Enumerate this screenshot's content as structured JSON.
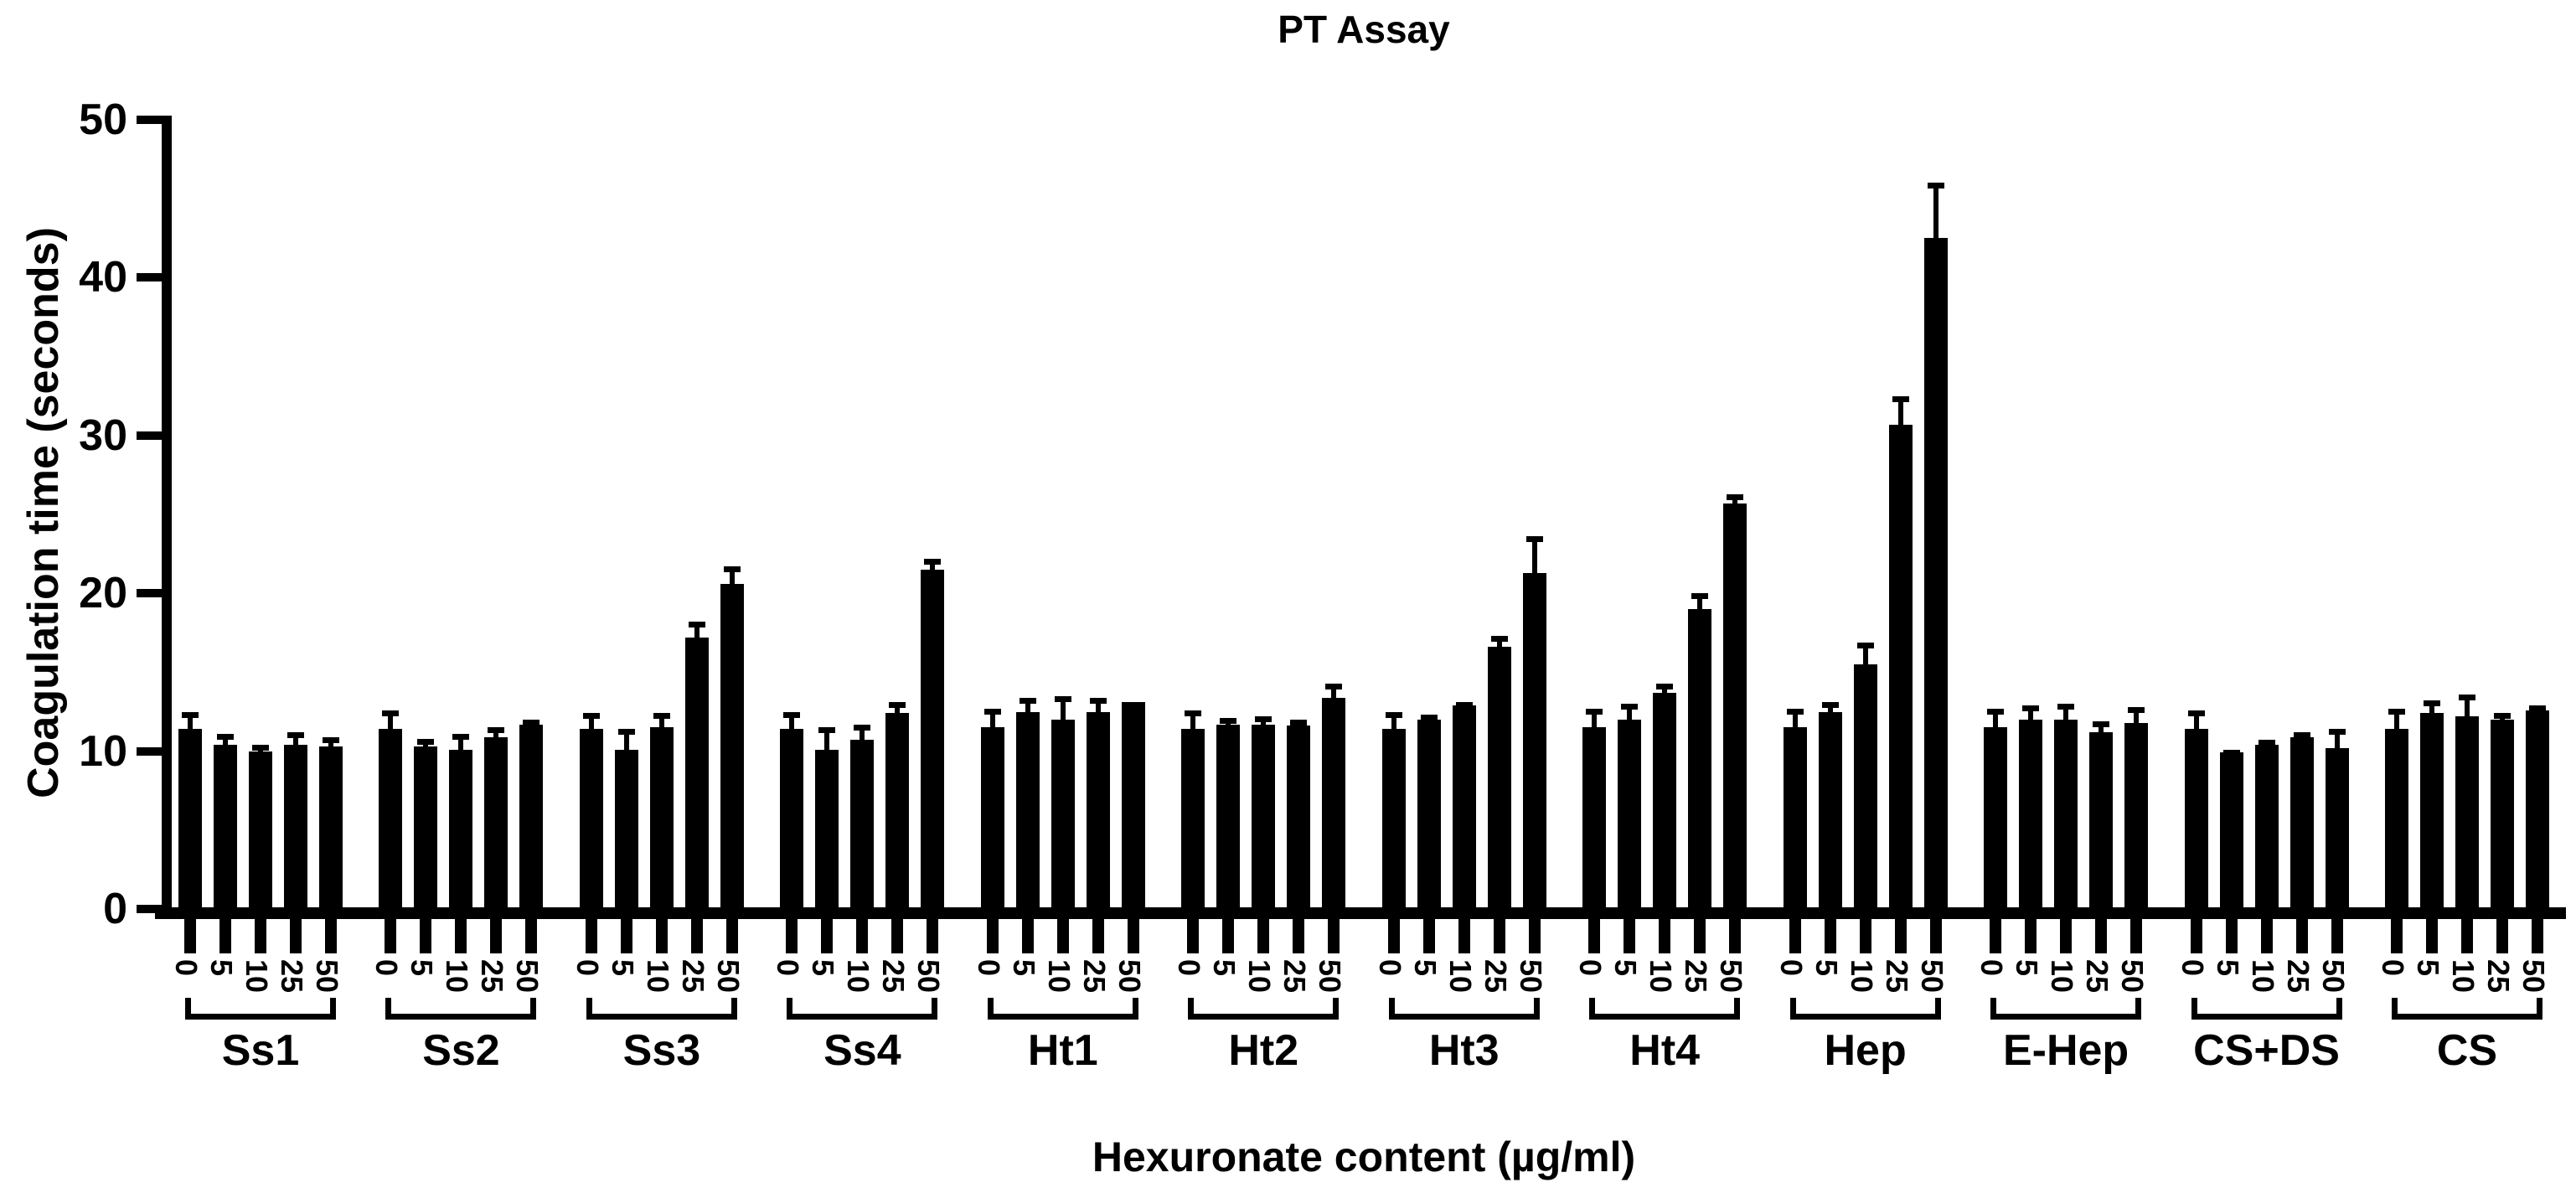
{
  "chart_data": {
    "type": "bar",
    "title": "PT Assay",
    "xlabel": "Hexuronate content (µg/ml)",
    "ylabel": "Coagulation time (seconds)",
    "ylim": [
      0,
      50
    ],
    "yticks": [
      0,
      10,
      20,
      30,
      40,
      50
    ],
    "doses": [
      "0",
      "5",
      "10",
      "25",
      "50"
    ],
    "bar_color": "#000000",
    "background_color": "#ffffff",
    "error_bar_style": "upper error bars with caps, black",
    "grid": "off",
    "legend": "none",
    "groups": [
      {
        "label": "Ss1",
        "values": [
          11.4,
          10.4,
          10.0,
          10.4,
          10.3
        ],
        "errors": [
          1.1,
          0.7,
          0.4,
          0.8,
          0.6
        ]
      },
      {
        "label": "Ss2",
        "values": [
          11.4,
          10.3,
          10.1,
          10.9,
          11.7
        ],
        "errors": [
          1.2,
          0.5,
          1.0,
          0.6,
          0.3
        ]
      },
      {
        "label": "Ss3",
        "values": [
          11.4,
          10.1,
          11.5,
          17.2,
          20.6
        ],
        "errors": [
          1.0,
          1.3,
          0.9,
          1.0,
          1.1
        ]
      },
      {
        "label": "Ss4",
        "values": [
          11.4,
          10.1,
          10.7,
          12.4,
          21.5
        ],
        "errors": [
          1.1,
          1.4,
          1.0,
          0.7,
          0.7
        ]
      },
      {
        "label": "Ht1",
        "values": [
          11.5,
          12.5,
          12.0,
          12.5,
          13.1
        ],
        "errors": [
          1.2,
          0.9,
          1.5,
          0.9,
          0
        ]
      },
      {
        "label": "Ht2",
        "values": [
          11.4,
          11.7,
          11.7,
          11.6,
          13.4
        ],
        "errors": [
          1.2,
          0.4,
          0.5,
          0.4,
          0.9
        ]
      },
      {
        "label": "Ht3",
        "values": [
          11.4,
          12.0,
          12.9,
          16.6,
          21.3
        ],
        "errors": [
          1.1,
          0.3,
          0.2,
          0.7,
          2.3
        ]
      },
      {
        "label": "Ht4",
        "values": [
          11.5,
          12.0,
          13.7,
          19.0,
          25.7
        ],
        "errors": [
          1.2,
          1.0,
          0.6,
          1.0,
          0.6
        ]
      },
      {
        "label": "Hep",
        "values": [
          11.5,
          12.5,
          15.5,
          30.7,
          42.5
        ],
        "errors": [
          1.2,
          0.6,
          1.4,
          1.8,
          3.5
        ]
      },
      {
        "label": "E-Hep",
        "values": [
          11.5,
          12.0,
          12.0,
          11.2,
          11.8
        ],
        "errors": [
          1.2,
          0.9,
          1.0,
          0.7,
          1.0
        ]
      },
      {
        "label": "CS+DS",
        "values": [
          11.4,
          9.9,
          10.4,
          10.9,
          10.2
        ],
        "errors": [
          1.2,
          0.2,
          0.3,
          0.3,
          1.2
        ]
      },
      {
        "label": "CS",
        "values": [
          11.4,
          12.4,
          12.2,
          12.0,
          12.6
        ],
        "errors": [
          1.3,
          0.8,
          1.4,
          0.4,
          0.3
        ]
      }
    ]
  }
}
